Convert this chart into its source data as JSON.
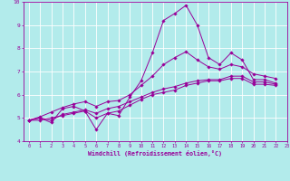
{
  "xlabel": "Windchill (Refroidissement éolien,°C)",
  "bg_color": "#b2ebeb",
  "line_color": "#990099",
  "grid_color": "#ffffff",
  "xlim": [
    -0.5,
    23
  ],
  "ylim": [
    4,
    10
  ],
  "yticks": [
    4,
    5,
    6,
    7,
    8,
    9,
    10
  ],
  "xticks": [
    0,
    1,
    2,
    3,
    4,
    5,
    6,
    7,
    8,
    9,
    10,
    11,
    12,
    13,
    14,
    15,
    16,
    17,
    18,
    19,
    20,
    21,
    22,
    23
  ],
  "series": [
    [
      4.9,
      5.0,
      4.8,
      5.4,
      5.5,
      5.3,
      4.5,
      5.2,
      5.1,
      5.9,
      6.6,
      7.8,
      9.2,
      9.5,
      9.85,
      9.0,
      7.6,
      7.3,
      7.8,
      7.5,
      6.65,
      6.65,
      6.5
    ],
    [
      4.9,
      5.0,
      4.9,
      5.15,
      5.25,
      5.35,
      5.2,
      5.4,
      5.5,
      5.7,
      5.9,
      6.1,
      6.25,
      6.35,
      6.5,
      6.6,
      6.65,
      6.65,
      6.8,
      6.8,
      6.55,
      6.55,
      6.45
    ],
    [
      4.9,
      5.05,
      5.25,
      5.45,
      5.6,
      5.7,
      5.5,
      5.7,
      5.75,
      6.0,
      6.4,
      6.8,
      7.3,
      7.6,
      7.85,
      7.5,
      7.2,
      7.1,
      7.3,
      7.2,
      6.9,
      6.8,
      6.7
    ],
    [
      4.9,
      4.9,
      5.0,
      5.1,
      5.2,
      5.3,
      5.0,
      5.2,
      5.3,
      5.55,
      5.8,
      6.0,
      6.1,
      6.2,
      6.4,
      6.5,
      6.6,
      6.6,
      6.7,
      6.7,
      6.45,
      6.45,
      6.4
    ]
  ]
}
